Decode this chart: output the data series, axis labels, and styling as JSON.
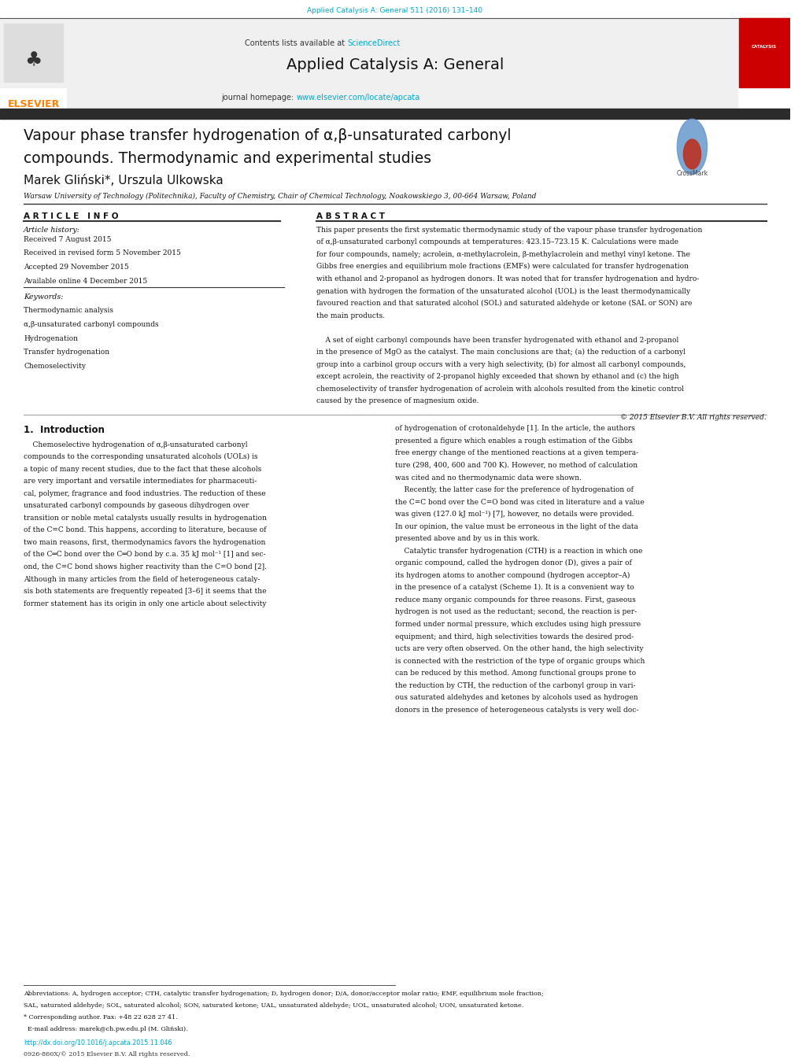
{
  "page_width": 10.2,
  "page_height": 13.51,
  "bg_color": "#ffffff",
  "header_bg": "#f0f0f0",
  "dark_bar_color": "#2b2b2b",
  "journal_ref_color": "#00aacc",
  "journal_ref_text": "Applied Catalysis A: General 511 (2016) 131–140",
  "sciencedirect_text": "ScienceDirect",
  "sciencedirect_color": "#00aacc",
  "journal_title": "Applied Catalysis A: General",
  "homepage_text": "journal homepage: ",
  "homepage_url": "www.elsevier.com/locate/apcata",
  "homepage_url_color": "#00aacc",
  "elsevier_color": "#ff8000",
  "red_box_color": "#cc0000",
  "article_title_line1": "Vapour phase transfer hydrogenation of α,β-unsaturated carbonyl",
  "article_title_line2": "compounds. Thermodynamic and experimental studies",
  "authors": "Marek Gliński*, Urszula Ulkowska",
  "affiliation": "Warsaw University of Technology (Politechnika), Faculty of Chemistry, Chair of Chemical Technology, Noakowskiego 3, 00-664 Warsaw, Poland",
  "article_info_header": "A R T I C L E   I N F O",
  "abstract_header": "A B S T R A C T",
  "article_history_label": "Article history:",
  "history_lines": [
    "Received 7 August 2015",
    "Received in revised form 5 November 2015",
    "Accepted 29 November 2015",
    "Available online 4 December 2015"
  ],
  "keywords_label": "Keywords:",
  "keywords": [
    "Thermodynamic analysis",
    "α,β-unsaturated carbonyl compounds",
    "Hydrogenation",
    "Transfer hydrogenation",
    "Chemoselectivity"
  ],
  "copyright_text": "© 2015 Elsevier B.V. All rights reserved.",
  "section1_title": "1.  Introduction",
  "doi_text": "http://dx.doi.org/10.1016/j.apcata.2015.11.046",
  "issn_text": "0926-860X/© 2015 Elsevier B.V. All rights reserved.",
  "abstract_lines": [
    "This paper presents the first systematic thermodynamic study of the vapour phase transfer hydrogenation",
    "of α,β-unsaturated carbonyl compounds at temperatures: 423.15–723.15 K. Calculations were made",
    "for four compounds, namely; acrolein, α-methylacrolein, β-methylacrolein and methyl vinyl ketone. The",
    "Gibbs free energies and equilibrium mole fractions (EMFs) were calculated for transfer hydrogenation",
    "with ethanol and 2-propanol as hydrogen donors. It was noted that for transfer hydrogenation and hydro-",
    "genation with hydrogen the formation of the unsaturated alcohol (UOL) is the least thermodynamically",
    "favoured reaction and that saturated alcohol (SOL) and saturated aldehyde or ketone (SAL or SON) are",
    "the main products.",
    "",
    "    A set of eight carbonyl compounds have been transfer hydrogenated with ethanol and 2-propanol",
    "in the presence of MgO as the catalyst. The main conclusions are that; (a) the reduction of a carbonyl",
    "group into a carbinol group occurs with a very high selectivity, (b) for almost all carbonyl compounds,",
    "except acrolein, the reactivity of 2-propanol highly exceeded that shown by ethanol and (c) the high",
    "chemoselectivity of transfer hydrogenation of acrolein with alcohols resulted from the kinetic control",
    "caused by the presence of magnesium oxide."
  ],
  "intro_left_lines": [
    "    Chemoselective hydrogenation of α,β-unsaturated carbonyl",
    "compounds to the corresponding unsaturated alcohols (UOLs) is",
    "a topic of many recent studies, due to the fact that these alcohols",
    "are very important and versatile intermediates for pharmaceuti-",
    "cal, polymer, fragrance and food industries. The reduction of these",
    "unsaturated carbonyl compounds by gaseous dihydrogen over",
    "transition or noble metal catalysts usually results in hydrogenation",
    "of the C=C bond. This happens, according to literature, because of",
    "two main reasons, first, thermodynamics favors the hydrogenation",
    "of the C═C bond over the C═O bond by c.a. 35 kJ mol⁻¹ [1] and sec-",
    "ond, the C=C bond shows higher reactivity than the C=O bond [2].",
    "Although in many articles from the field of heterogeneous cataly-",
    "sis both statements are frequently repeated [3–6] it seems that the",
    "former statement has its origin in only one article about selectivity"
  ],
  "intro_right_lines": [
    "of hydrogenation of crotonaldehyde [1]. In the article, the authors",
    "presented a figure which enables a rough estimation of the Gibbs",
    "free energy change of the mentioned reactions at a given tempera-",
    "ture (298, 400, 600 and 700 K). However, no method of calculation",
    "was cited and no thermodynamic data were shown.",
    "    Recently, the latter case for the preference of hydrogenation of",
    "the C=C bond over the C=O bond was cited in literature and a value",
    "was given (127.0 kJ mol⁻¹) [7], however, no details were provided.",
    "In our opinion, the value must be erroneous in the light of the data",
    "presented above and by us in this work.",
    "    Catalytic transfer hydrogenation (CTH) is a reaction in which one",
    "organic compound, called the hydrogen donor (D), gives a pair of",
    "its hydrogen atoms to another compound (hydrogen acceptor–A)",
    "in the presence of a catalyst (Scheme 1). It is a convenient way to",
    "reduce many organic compounds for three reasons. First, gaseous",
    "hydrogen is not used as the reductant; second, the reaction is per-",
    "formed under normal pressure, which excludes using high pressure",
    "equipment; and third, high selectivities towards the desired prod-",
    "ucts are very often observed. On the other hand, the high selectivity",
    "is connected with the restriction of the type of organic groups which",
    "can be reduced by this method. Among functional groups prone to",
    "the reduction by CTH, the reduction of the carbonyl group in vari-",
    "ous saturated aldehydes and ketones by alcohols used as hydrogen",
    "donors in the presence of heterogeneous catalysts is very well doc-"
  ],
  "footnote_lines": [
    "Abbreviations: A, hydrogen acceptor; CTH, catalytic transfer hydrogenation; D, hydrogen donor; D/A, donor/acceptor molar ratio; EMF, equilibrium mole fraction;",
    "SAL, saturated aldehyde; SOL, saturated alcohol; SON, saturated ketone; UAL, unsaturated aldehyde; UOL, unsaturated alcohol; UON, unsaturated ketone.",
    "* Corresponding author. Fax: +48 22 628 27 41.",
    "  E-mail address: marek@ch.pw.edu.pl (M. Gliński)."
  ]
}
